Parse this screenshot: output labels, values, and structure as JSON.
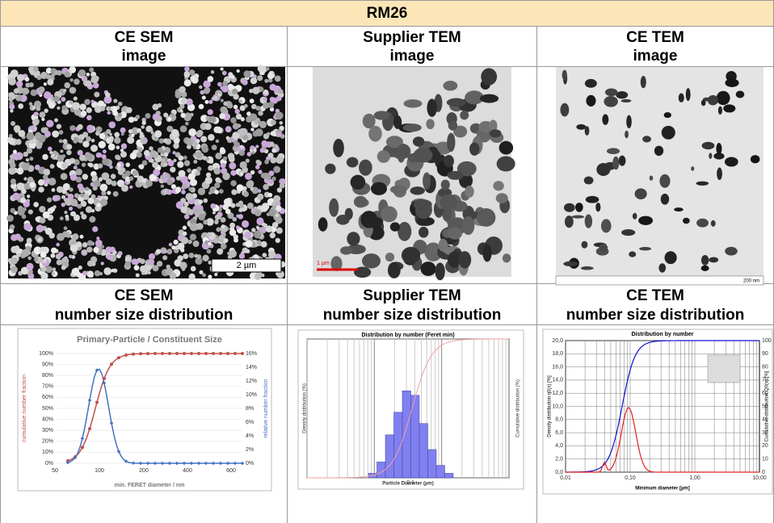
{
  "table": {
    "title": "RM26",
    "rows": [
      {
        "cells": [
          {
            "title": "CE SEM",
            "subtitle": "image",
            "image": {
              "scale_bar": "2 µm"
            }
          },
          {
            "title": "Supplier TEM",
            "subtitle": "image",
            "image": {
              "scale_bar": "1 µm"
            }
          },
          {
            "title": "CE TEM",
            "subtitle": "image",
            "image": {
              "scale_bar": "200 nm"
            }
          }
        ]
      },
      {
        "cells": [
          {
            "title": "CE SEM",
            "subtitle": "number size distribution",
            "chart": {
              "title": "Primary-Particle / Constituent Size",
              "ylabel": "cumulative number fraction",
              "y2label": "relative number fraction",
              "xlabel": "min. FERET diameter / nm",
              "xticks": [
                "50",
                "100",
                "200",
                "400",
                "600"
              ],
              "yticks": [
                "0%",
                "10%",
                "20%",
                "30%",
                "40%",
                "50%",
                "60%",
                "70%",
                "80%",
                "90%",
                "100%"
              ],
              "y2ticks": [
                "0%",
                "2%",
                "4%",
                "6%",
                "8%",
                "10%",
                "12%",
                "14%",
                "16%"
              ]
            }
          },
          {
            "title": "Supplier TEM",
            "subtitle": "number size distribution",
            "chart": {
              "title": "Distribution by number (Feret min)",
              "ylabel": "Density distribution (%)",
              "y2label": "Cumulative distribution (%)",
              "xlabel": "Particle Diameter (µm)",
              "xticks": [
                "0.1"
              ]
            }
          },
          {
            "title": "CE TEM",
            "subtitle": "number size distribution",
            "chart": {
              "title": "Distribution by number",
              "ylabel": "Density distribution q0(x) [%]",
              "y2label": "Cumulative distribution Q0(x) [%]",
              "xlabel": "Minimum diameter [µm]",
              "xticks": [
                "0,01",
                "0,10",
                "1,00",
                "10,00"
              ],
              "yticks": [
                "0,0",
                "2,0",
                "4,0",
                "6,0",
                "8,0",
                "10,0",
                "12,0",
                "14,0",
                "16,0",
                "18,0",
                "20,0"
              ],
              "y2ticks": [
                "0",
                "10",
                "20",
                "30",
                "40",
                "50",
                "60",
                "70",
                "80",
                "90",
                "100"
              ]
            }
          }
        ]
      }
    ]
  }
}
